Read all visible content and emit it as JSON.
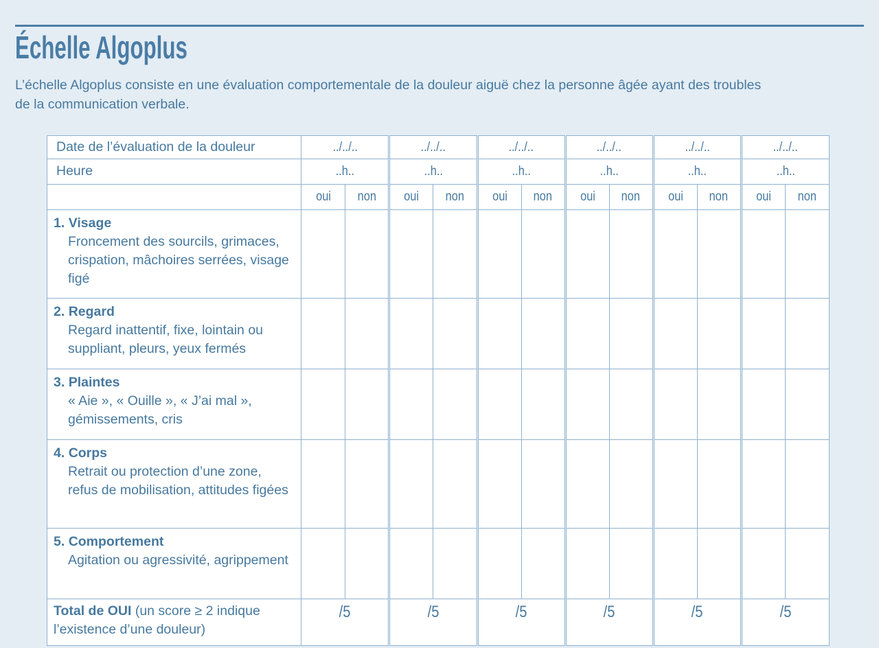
{
  "page": {
    "title": "Échelle Algoplus",
    "intro_line1": "L’échelle Algoplus consiste en une évaluation comportementale de la douleur aiguë chez la personne âgée ayant des troubles",
    "intro_line2": "de la communication verbale."
  },
  "colors": {
    "accent": "#4a7da6",
    "page_background": "#e4edf4",
    "cell_background": "#ffffff",
    "table_border": "#8fb2d0"
  },
  "table": {
    "date_label": "Date de l’évaluation de la douleur",
    "date_placeholder": "../../..",
    "heure_label": "Heure",
    "heure_placeholder": "..h..",
    "oui_label": "oui",
    "non_label": "non",
    "columns_count": 6,
    "rows": [
      {
        "num": "1.",
        "title": "Visage",
        "description": "Froncement des sourcils, grimaces, crispation, mâchoires serrées, visage figé"
      },
      {
        "num": "2.",
        "title": "Regard",
        "description": "Regard inattentif, fixe, lointain ou suppliant, pleurs, yeux fermés"
      },
      {
        "num": "3.",
        "title": "Plaintes",
        "description": "« Aie », « Ouille », « J’ai mal », gémissements, cris"
      },
      {
        "num": "4.",
        "title": "Corps",
        "description": "Retrait ou protection d’une zone, refus de mobilisation, attitudes figées"
      },
      {
        "num": "5.",
        "title": "Comportement",
        "description": "Agitation ou agressivité, agrippement"
      }
    ],
    "total": {
      "bold": "Total de OUI",
      "rest": " (un score ≥ 2 indique l’existence d’une douleur)",
      "score_placeholder": "/5"
    }
  }
}
